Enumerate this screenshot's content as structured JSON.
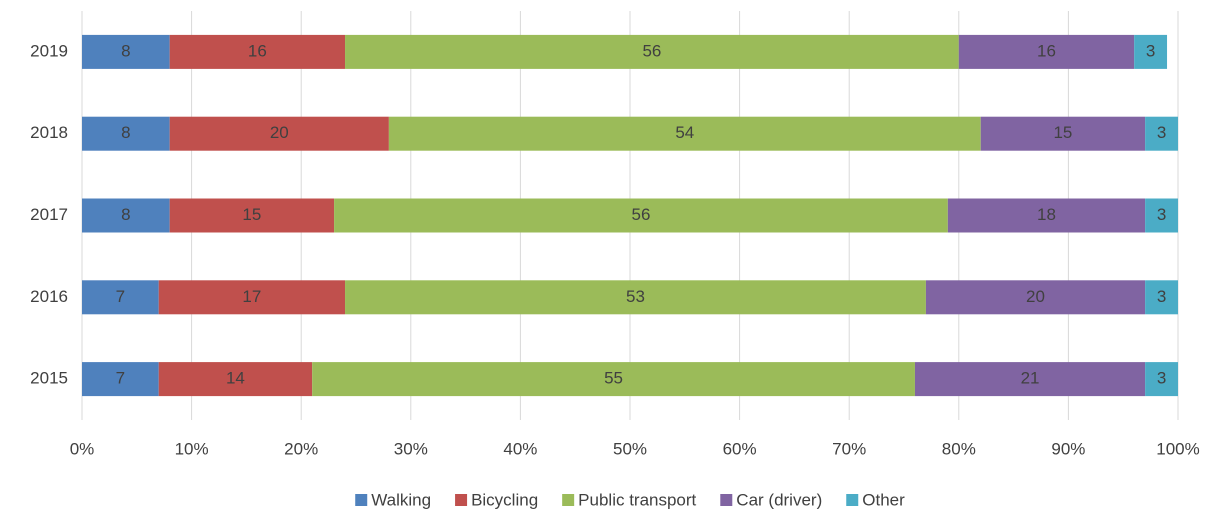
{
  "chart_data": {
    "type": "bar",
    "orientation": "horizontal",
    "stacked": true,
    "categories": [
      "2019",
      "2018",
      "2017",
      "2016",
      "2015"
    ],
    "series": [
      {
        "name": "Walking",
        "color": "#4f81bd",
        "values": [
          8,
          8,
          8,
          7,
          7
        ]
      },
      {
        "name": "Bicycling",
        "color": "#c0504d",
        "values": [
          16,
          20,
          15,
          17,
          14
        ]
      },
      {
        "name": "Public transport",
        "color": "#9bbb59",
        "values": [
          56,
          54,
          56,
          53,
          55
        ]
      },
      {
        "name": "Car (driver)",
        "color": "#8064a2",
        "values": [
          16,
          15,
          18,
          20,
          21
        ]
      },
      {
        "name": "Other",
        "color": "#4bacc6",
        "values": [
          3,
          3,
          3,
          3,
          3
        ]
      }
    ],
    "xlim": [
      0,
      100
    ],
    "xticks": [
      {
        "value": 0,
        "label": "0%"
      },
      {
        "value": 10,
        "label": "10%"
      },
      {
        "value": 20,
        "label": "20%"
      },
      {
        "value": 30,
        "label": "30%"
      },
      {
        "value": 40,
        "label": "40%"
      },
      {
        "value": 50,
        "label": "50%"
      },
      {
        "value": 60,
        "label": "60%"
      },
      {
        "value": 70,
        "label": "70%"
      },
      {
        "value": 80,
        "label": "80%"
      },
      {
        "value": 90,
        "label": "90%"
      },
      {
        "value": 100,
        "label": "100%"
      }
    ],
    "grid": true,
    "legend": "bottom"
  }
}
